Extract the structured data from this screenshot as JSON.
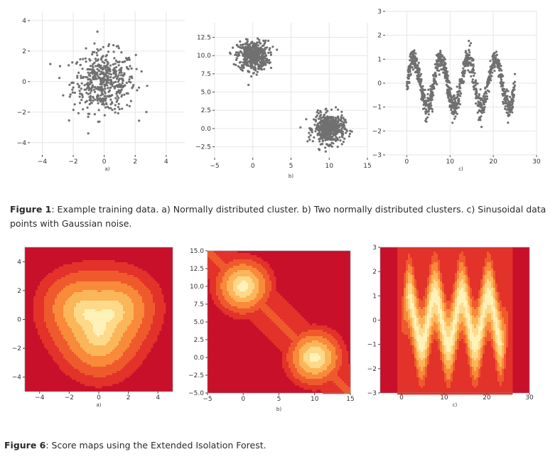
{
  "figure1": {
    "label": "Figure 1",
    "text": ": Example training data. a) Normally distributed cluster. b) Two normally distributed clusters. c) Sinusoidal data points with Gaussian noise."
  },
  "figure6": {
    "label": "Figure 6",
    "text": ": Score maps using the Extended Isolation Forest."
  },
  "colors": {
    "scatter_point": "#707070",
    "grid": "#e6e6e6",
    "heat_levels": [
      "#c8102a",
      "#e2322a",
      "#ef5a2c",
      "#f88a3a",
      "#fbb65a",
      "#fdd98a",
      "#fff2b8"
    ]
  },
  "chart_data": [
    {
      "type": "scatter",
      "subplot_label": "a)",
      "xticks": [
        "−4",
        "−2",
        "0",
        "2",
        "4"
      ],
      "yticks": [
        "4",
        "2",
        "0",
        "−2",
        "−4"
      ],
      "xlim": [
        -4.8,
        5.2
      ],
      "ylim": [
        -4.8,
        4.6
      ],
      "grid": true,
      "series": [
        {
          "distribution": "normal",
          "mean": [
            0,
            0
          ],
          "std": 1,
          "n_points": 500
        }
      ]
    },
    {
      "type": "scatter",
      "subplot_label": "b)",
      "xticks": [
        "−5",
        "0",
        "5",
        "10",
        "15"
      ],
      "yticks": [
        "12.5",
        "10.0",
        "7.5",
        "5.0",
        "2.5",
        "0.0",
        "−2.5"
      ],
      "xlim": [
        -5,
        15
      ],
      "ylim": [
        -4,
        14.5
      ],
      "grid": true,
      "series": [
        {
          "distribution": "normal",
          "mean": [
            0,
            10
          ],
          "std": 1,
          "n_points": 500
        },
        {
          "distribution": "normal",
          "mean": [
            10,
            0
          ],
          "std": 1,
          "n_points": 500
        }
      ]
    },
    {
      "type": "scatter",
      "subplot_label": "c)",
      "xticks": [
        "0",
        "10",
        "20",
        "30"
      ],
      "yticks": [
        "3",
        "2",
        "1",
        "0",
        "−1",
        "−2",
        "−3"
      ],
      "xlim": [
        -5,
        30
      ],
      "ylim": [
        -3,
        3
      ],
      "grid": true,
      "series": [
        {
          "distribution": "sinusoid",
          "function": "y = sin(x) + noise",
          "x_range": [
            0,
            25
          ],
          "noise_std": 0.25,
          "n_points": 1000
        }
      ]
    },
    {
      "type": "heatmap",
      "subplot_label": "a)",
      "xticks": [
        "−4",
        "−2",
        "0",
        "2",
        "4"
      ],
      "yticks": [
        "4",
        "2",
        "0",
        "−2",
        "−4"
      ],
      "xlim": [
        -5,
        5
      ],
      "ylim": [
        -5,
        5
      ],
      "levels": 7,
      "pattern": "single central blob at (0, 0)"
    },
    {
      "type": "heatmap",
      "subplot_label": "b)",
      "xticks": [
        "−5",
        "0",
        "5",
        "10",
        "15"
      ],
      "yticks": [
        "15.0",
        "12.5",
        "10.0",
        "7.5",
        "5.0",
        "2.5",
        "0.0",
        "−2.5",
        "−5.0"
      ],
      "xlim": [
        -5,
        15
      ],
      "ylim": [
        -5,
        15
      ],
      "levels": 7,
      "pattern": "two blobs at (0, 10) and (10, 0) joined by a diagonal band"
    },
    {
      "type": "heatmap",
      "subplot_label": "c)",
      "xticks": [
        "0",
        "10",
        "20",
        "30"
      ],
      "yticks": [
        "3",
        "2",
        "1",
        "0",
        "−1",
        "−2",
        "−3"
      ],
      "xlim": [
        -5,
        30
      ],
      "ylim": [
        -3,
        3
      ],
      "levels": 7,
      "pattern": "sinusoidal band along y = sin(x), x in [0, 25]"
    }
  ]
}
